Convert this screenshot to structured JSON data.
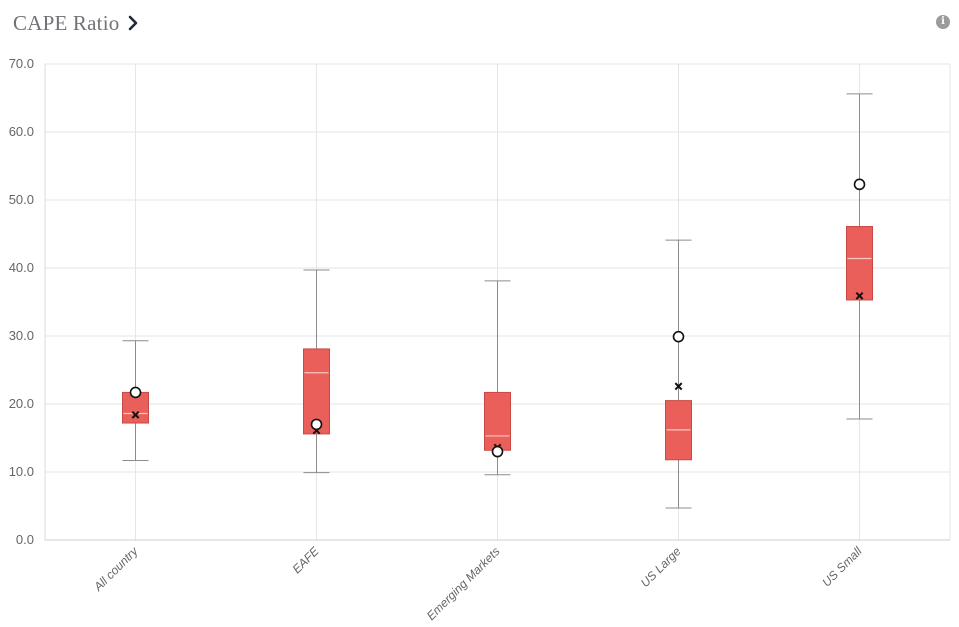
{
  "header": {
    "title": "CAPE Ratio",
    "chevron_icon": "chevron-right-icon",
    "info_icon": "info-icon",
    "info_glyph": "i"
  },
  "colors": {
    "box_fill": "#ea5f59",
    "box_stroke": "#c94a45",
    "median_line": "#f7c5c2",
    "whisker": "#8c8c8c",
    "grid": "#e6e6e6"
  },
  "chart_data": {
    "type": "box",
    "title": "CAPE Ratio",
    "xlabel": "",
    "ylabel": "",
    "ylim": [
      0,
      70
    ],
    "yticks": [
      "0.0",
      "10.0",
      "20.0",
      "30.0",
      "40.0",
      "50.0",
      "60.0",
      "70.0"
    ],
    "grid": true,
    "categories": [
      "All country",
      "EAFE",
      "Emerging Markets",
      "US Large",
      "US Small"
    ],
    "boxes": [
      {
        "category": "All country",
        "min": 11.7,
        "q1": 17.2,
        "median": 18.6,
        "q3": 21.7,
        "max": 29.3,
        "circle": 21.7,
        "cross": 18.4
      },
      {
        "category": "EAFE",
        "min": 9.9,
        "q1": 15.6,
        "median": 24.6,
        "q3": 28.1,
        "max": 39.7,
        "circle": 17.0,
        "cross": 16.1
      },
      {
        "category": "Emerging Markets",
        "min": 9.6,
        "q1": 13.2,
        "median": 15.3,
        "q3": 21.7,
        "max": 38.1,
        "circle": 13.0,
        "cross": 13.6
      },
      {
        "category": "US Large",
        "min": 4.7,
        "q1": 11.8,
        "median": 16.2,
        "q3": 20.5,
        "max": 44.1,
        "circle": 29.9,
        "cross": 22.6
      },
      {
        "category": "US Small",
        "min": 17.8,
        "q1": 35.3,
        "median": 41.4,
        "q3": 46.1,
        "max": 65.6,
        "circle": 52.3,
        "cross": 35.9
      }
    ]
  }
}
